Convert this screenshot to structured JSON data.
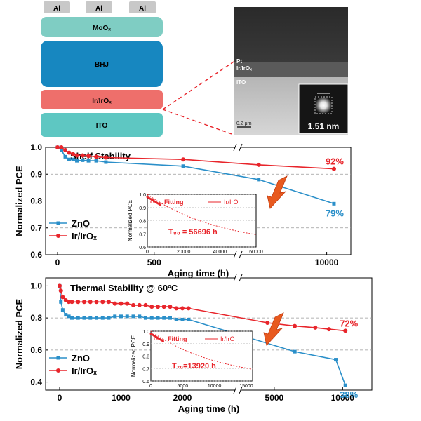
{
  "colors": {
    "zno": "#2a8fc9",
    "irirox": "#e8252b",
    "al": "#c8c8c8",
    "moox": "#7fcdc3",
    "bhj": "#1787c0",
    "irirox_layer": "#ee6f6b",
    "ito": "#5ec7c2"
  },
  "device_stack": {
    "al_labels": [
      "Al",
      "Al",
      "Al"
    ],
    "moox": "MoOₓ",
    "bhj": "BHJ",
    "irirox": "Ir/IrOₓ",
    "ito": "ITO"
  },
  "tem": {
    "label_pt": "Pt",
    "label_irirox": "Ir/IrOₓ",
    "label_ito": "ITO",
    "scale": "0.2 μm",
    "inset_size": "1.51 nm"
  },
  "chart_data": [
    {
      "type": "line",
      "title": "Shelf Stability",
      "xlabel": "Aging time (h)",
      "ylabel": "Normalized PCE",
      "ylim": [
        0.6,
        1.0
      ],
      "yticks": [
        "0.6",
        "0.7",
        "0.8",
        "0.9",
        "1.0"
      ],
      "xticks": [
        "0",
        "500",
        "10000"
      ],
      "axis_break": true,
      "segment1_range": [
        0,
        900
      ],
      "segment2_range": [
        900,
        11500
      ],
      "legend_placement": "bottom-left",
      "series": [
        {
          "name": "ZnO",
          "x": [
            0,
            20,
            40,
            60,
            80,
            100,
            130,
            160,
            200,
            250,
            650,
            2500,
            10800
          ],
          "y": [
            1.0,
            0.99,
            0.965,
            0.955,
            0.955,
            0.95,
            0.952,
            0.95,
            0.95,
            0.945,
            0.93,
            0.88,
            0.79
          ],
          "end_label": "79%"
        },
        {
          "name": "Ir/IrOₓ",
          "x": [
            0,
            20,
            40,
            60,
            80,
            100,
            130,
            160,
            200,
            250,
            650,
            2500,
            10800
          ],
          "y": [
            1.0,
            1.0,
            0.99,
            0.98,
            0.975,
            0.97,
            0.97,
            0.968,
            0.965,
            0.962,
            0.955,
            0.935,
            0.92
          ],
          "end_label": "92%"
        }
      ],
      "inset": {
        "ylabel": "Normalized PCE",
        "xticks": [
          "0",
          "20000",
          "40000",
          "60000"
        ],
        "yticks": [
          "0.6",
          "0.7",
          "0.8",
          "0.9",
          "1.0"
        ],
        "xlim": [
          0,
          60000
        ],
        "ylim": [
          0.6,
          1.0
        ],
        "legend_fitting": "Fitting",
        "legend_series": "Ir/IrO",
        "annotation": "T₈₀ = 56696 h"
      }
    },
    {
      "type": "line",
      "title": "Thermal Stability @ 60ºC",
      "xlabel": "Aging time (h)",
      "ylabel": "Normalized PCE",
      "ylim": [
        0.35,
        1.05
      ],
      "yticks": [
        "0.4",
        "0.6",
        "0.8",
        "1.0"
      ],
      "xticks": [
        "0",
        "1000",
        "2000",
        "5000",
        "10000"
      ],
      "axis_break": true,
      "segment1_range": [
        0,
        2800
      ],
      "segment2_range": [
        2800,
        10600
      ],
      "legend_placement": "bottom-left",
      "series": [
        {
          "name": "ZnO",
          "x": [
            0,
            20,
            50,
            100,
            150,
            200,
            300,
            400,
            500,
            600,
            700,
            800,
            900,
            1000,
            1100,
            1200,
            1300,
            1400,
            1500,
            1600,
            1700,
            1800,
            1900,
            2000,
            2100,
            6500,
            9500,
            10200
          ],
          "y": [
            1.0,
            0.9,
            0.85,
            0.82,
            0.81,
            0.8,
            0.8,
            0.8,
            0.8,
            0.8,
            0.8,
            0.8,
            0.81,
            0.81,
            0.81,
            0.81,
            0.81,
            0.8,
            0.8,
            0.8,
            0.8,
            0.8,
            0.79,
            0.79,
            0.79,
            0.59,
            0.54,
            0.38
          ],
          "end_label": "38%"
        },
        {
          "name": "Ir/IrOₓ",
          "x": [
            0,
            20,
            50,
            100,
            150,
            200,
            300,
            400,
            500,
            600,
            700,
            800,
            900,
            1000,
            1100,
            1200,
            1300,
            1400,
            1500,
            1600,
            1700,
            1800,
            1900,
            2000,
            2100,
            4500,
            6500,
            8000,
            9000,
            10200
          ],
          "y": [
            1.0,
            0.97,
            0.93,
            0.91,
            0.9,
            0.9,
            0.9,
            0.9,
            0.9,
            0.9,
            0.9,
            0.9,
            0.89,
            0.89,
            0.89,
            0.88,
            0.88,
            0.88,
            0.87,
            0.87,
            0.87,
            0.87,
            0.86,
            0.86,
            0.86,
            0.77,
            0.75,
            0.74,
            0.73,
            0.72
          ],
          "end_label": "72%"
        }
      ],
      "inset": {
        "ylabel": "Normalized PCE",
        "xticks": [
          "0",
          "5000",
          "10000",
          "15000"
        ],
        "yticks": [
          "0.6",
          "0.7",
          "0.8",
          "0.9",
          "1.0"
        ],
        "xlim": [
          0,
          16000
        ],
        "ylim": [
          0.6,
          1.0
        ],
        "legend_fitting": "Fitting",
        "legend_series": "Ir/IrO",
        "annotation": "T₇₀=13920 h"
      }
    }
  ]
}
